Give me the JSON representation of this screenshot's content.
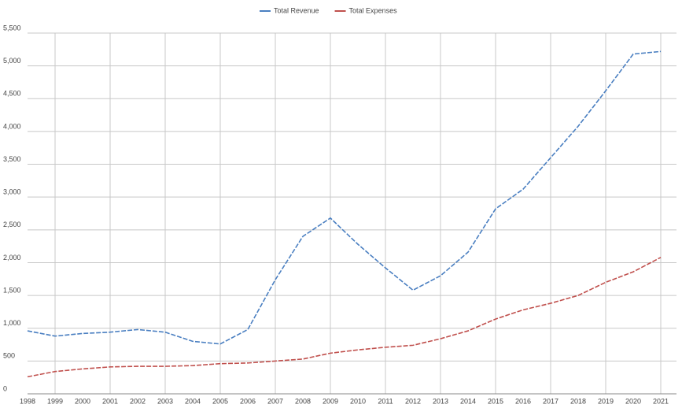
{
  "chart_data": {
    "type": "line",
    "categories": [
      "1998",
      "1999",
      "2000",
      "2001",
      "2002",
      "2003",
      "2004",
      "2005",
      "2006",
      "2007",
      "2008",
      "2009",
      "2010",
      "2011",
      "2012",
      "2013",
      "2014",
      "2015",
      "2016",
      "2017",
      "2018",
      "2019",
      "2020",
      "2021"
    ],
    "series": [
      {
        "name": "Total Revenue",
        "color": "#4a7fc1",
        "values": [
          960,
          880,
          920,
          940,
          980,
          940,
          800,
          760,
          980,
          1740,
          2400,
          2680,
          2280,
          1920,
          1580,
          1800,
          2160,
          2820,
          3120,
          3600,
          4080,
          4620,
          5180,
          5220
        ]
      },
      {
        "name": "Total Expenses",
        "color": "#c0504d",
        "values": [
          260,
          340,
          380,
          410,
          420,
          420,
          430,
          460,
          470,
          500,
          530,
          620,
          670,
          710,
          740,
          840,
          960,
          1140,
          1280,
          1380,
          1500,
          1700,
          1860,
          2080
        ]
      }
    ],
    "ylim": [
      0,
      5500
    ],
    "yticks": [
      0,
      500,
      {
        "value": 1000,
        "label": "1,000"
      },
      {
        "value": 1500,
        "label": "1,500"
      },
      {
        "value": 2000,
        "label": "2,000"
      },
      {
        "value": 2500,
        "label": "2,500"
      },
      {
        "value": 3000,
        "label": "3,000"
      },
      {
        "value": 3500,
        "label": "3,500"
      },
      {
        "value": 4000,
        "label": "4,000"
      },
      {
        "value": 4500,
        "label": "4,500"
      },
      {
        "value": 5000,
        "label": "5,000"
      },
      {
        "value": 5500,
        "label": "5,500"
      }
    ],
    "grid": true,
    "legend": "top"
  }
}
